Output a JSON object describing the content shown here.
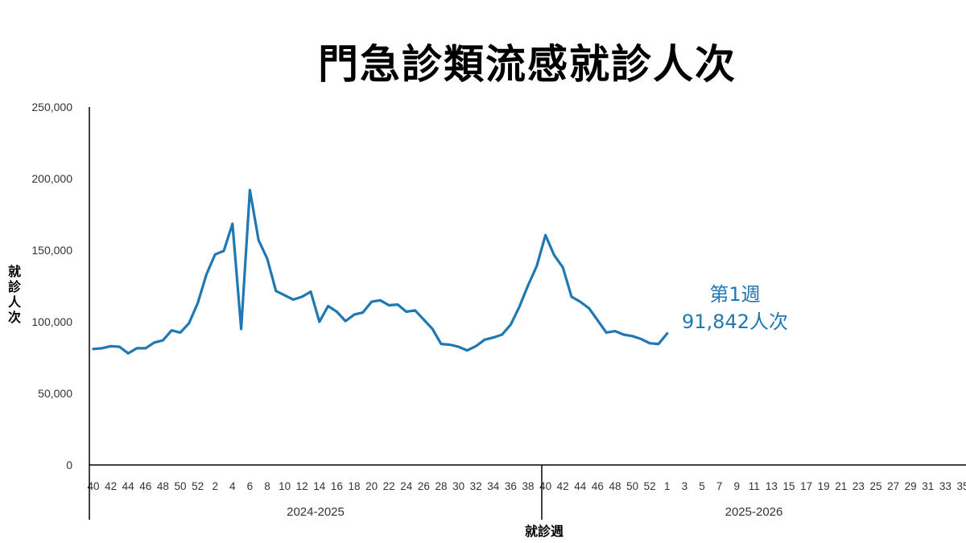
{
  "chart_data": {
    "type": "line",
    "title": "門急診類流感就診人次",
    "xlabel": "就診週",
    "ylabel": "就診人次",
    "ylim": [
      0,
      250000
    ],
    "yticks": [
      "250,000",
      "200,000",
      "150,000",
      "100,000",
      "50,000",
      "0"
    ],
    "ytick_values": [
      250000,
      200000,
      150000,
      100000,
      50000,
      0
    ],
    "line_color": "#1F78B4",
    "grid": false,
    "seasons": [
      {
        "label": "2024-2025",
        "start_index": 0
      },
      {
        "label": "2025-2026",
        "start_index": 52
      }
    ],
    "x_tick_labels": [
      "40",
      "42",
      "44",
      "46",
      "48",
      "50",
      "52",
      "2",
      "4",
      "6",
      "8",
      "10",
      "12",
      "14",
      "16",
      "18",
      "20",
      "22",
      "24",
      "26",
      "28",
      "30",
      "32",
      "34",
      "36",
      "38",
      "40",
      "42",
      "44",
      "46",
      "48",
      "50",
      "52",
      "1",
      "3",
      "5",
      "7",
      "9",
      "11",
      "13",
      "15",
      "17",
      "19",
      "21",
      "23",
      "25",
      "27",
      "29",
      "31",
      "33",
      "35"
    ],
    "x_week_count": 104,
    "series": [
      {
        "values": [
          81000,
          81500,
          83000,
          82500,
          78000,
          81500,
          81500,
          85500,
          87000,
          94000,
          92500,
          99000,
          113000,
          133000,
          147000,
          149500,
          168500,
          95000,
          192000,
          157000,
          144000,
          121500,
          118500,
          115500,
          117500,
          121000,
          100000,
          111000,
          107000,
          100500,
          105000,
          106500,
          114000,
          115000,
          111500,
          112000,
          107000,
          108000,
          101500,
          95000,
          84500,
          84000,
          82500,
          80000,
          83000,
          87500,
          89000,
          91000,
          98000,
          110500,
          125500,
          139000,
          160500,
          146500,
          138000,
          117500,
          114000,
          109500,
          101000,
          92500,
          93500,
          91000,
          90000,
          88000,
          85000,
          84500,
          91842
        ]
      }
    ],
    "annotation": {
      "line1": "第1週",
      "line2": "91,842人次"
    }
  }
}
